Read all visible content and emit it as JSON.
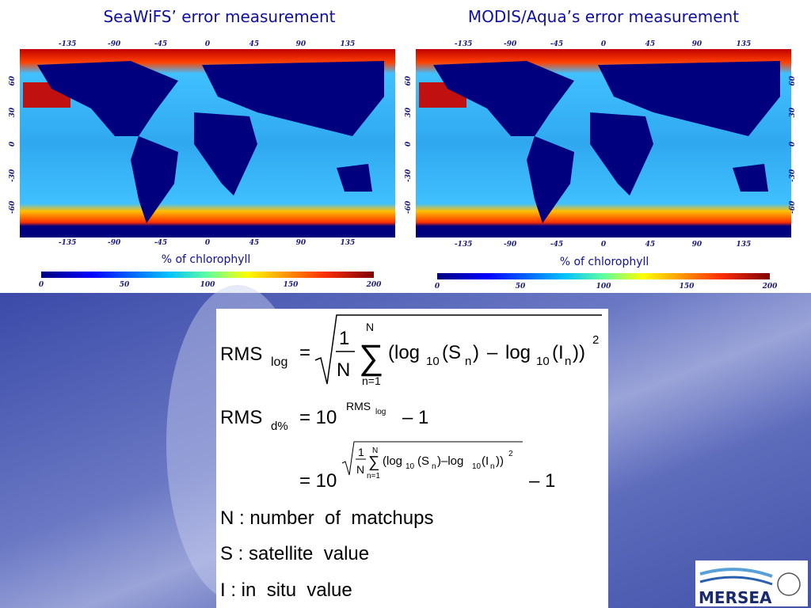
{
  "left_panel": {
    "title": "SeaWiFS’ error measurement",
    "colorbar_label": "% of chlorophyll"
  },
  "right_panel": {
    "title": "MODIS/Aqua’s error measurement",
    "colorbar_label": "% of chlorophyll"
  },
  "map_axes": {
    "longitude_ticks": [
      -135,
      -90,
      -45,
      0,
      45,
      90,
      135
    ],
    "latitude_ticks": [
      60,
      30,
      0,
      -30,
      -60
    ],
    "colorbar_ticks": [
      0,
      50,
      100,
      150,
      200
    ]
  },
  "formula_1": [
    "RMS",
    "log",
    "=",
    "1",
    "N",
    "N",
    "∑",
    "n=1",
    "(log",
    "10",
    "(S",
    "n",
    ")",
    "–",
    "log",
    "10",
    "(I",
    "n",
    "))",
    "2"
  ],
  "formula_2": [
    "RMS",
    "d%",
    "= 10",
    "RMS",
    "log",
    "– 1"
  ],
  "formula_3": [
    "= 10",
    "1",
    "N",
    "N",
    "∑",
    "n=1",
    "(log",
    "10",
    "(S",
    "n",
    ")–log",
    "10",
    "(I",
    "n",
    "))",
    "2",
    "– 1"
  ],
  "definitions": [
    "N : number  of  matchups",
    "S : satellite  value",
    "I : in  situ  value"
  ],
  "logo": "MERSEA"
}
